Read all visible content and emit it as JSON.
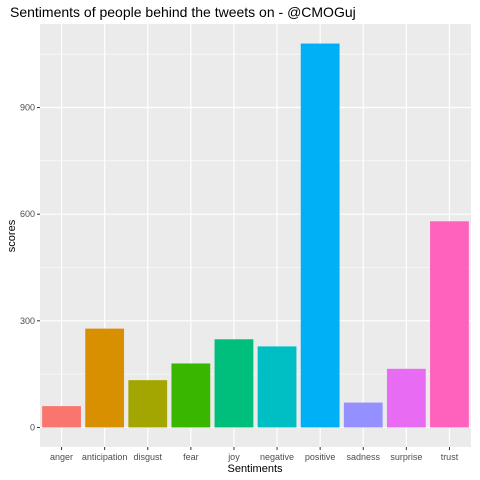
{
  "chart_data": {
    "type": "bar",
    "title": "Sentiments of people behind the tweets on - @CMOGuj",
    "xlabel": "Sentiments",
    "ylabel": "scores",
    "categories": [
      "anger",
      "anticipation",
      "disgust",
      "fear",
      "joy",
      "negative",
      "positive",
      "sadness",
      "surprise",
      "trust"
    ],
    "values": [
      60,
      278,
      133,
      180,
      248,
      228,
      1080,
      70,
      165,
      580
    ],
    "colors": [
      "#F8766D",
      "#D89000",
      "#A3A500",
      "#39B600",
      "#00BF7D",
      "#00BFC4",
      "#00B0F6",
      "#9590FF",
      "#E76BF3",
      "#FF62BC"
    ],
    "yticks": [
      0,
      300,
      600,
      900
    ],
    "ylim": [
      -55,
      1135
    ],
    "grid": true,
    "legend": "none"
  }
}
